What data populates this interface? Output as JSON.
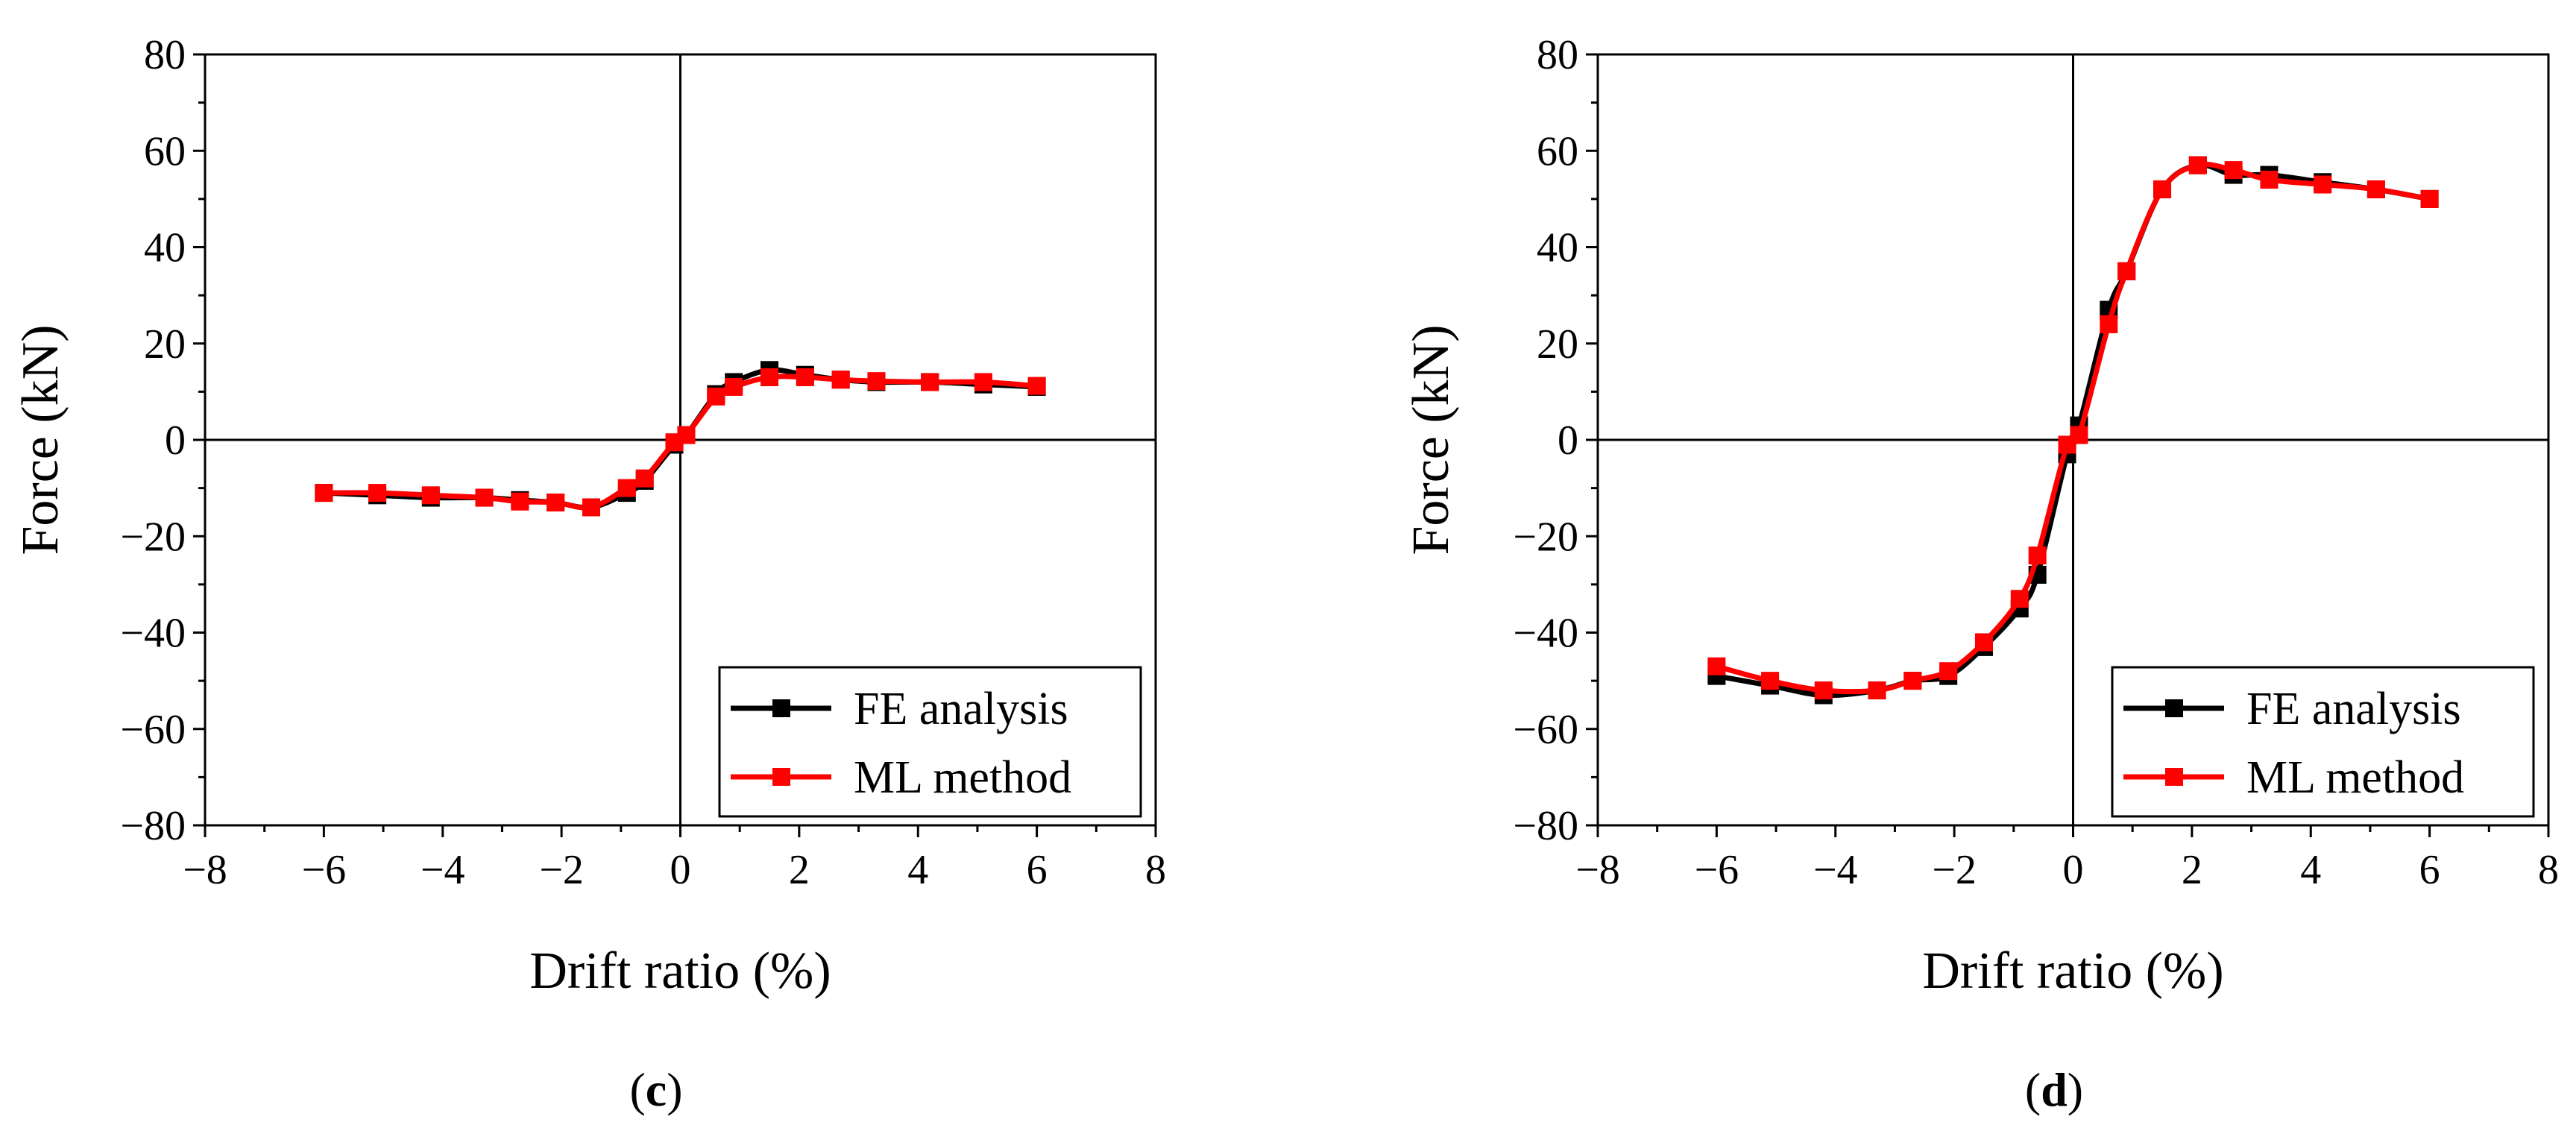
{
  "chart_data": [
    {
      "type": "line",
      "panel_label": "c",
      "xlabel": "Drift ratio (%)",
      "ylabel": "Force (kN)",
      "xlim": [
        -8,
        8
      ],
      "ylim": [
        -80,
        80
      ],
      "xticks": [
        -8,
        -6,
        -4,
        -2,
        0,
        2,
        4,
        6,
        8
      ],
      "yticks": [
        -80,
        -60,
        -40,
        -20,
        0,
        20,
        40,
        60,
        80
      ],
      "xtick_labels": [
        "−8",
        "−6",
        "−4",
        "−2",
        "0",
        "2",
        "4",
        "6",
        "8"
      ],
      "ytick_labels": [
        "−80",
        "−60",
        "−40",
        "−20",
        "0",
        "20",
        "40",
        "60",
        "80"
      ],
      "legend_position": "bottom-right",
      "series": [
        {
          "name": "FE analysis",
          "color": "#000000",
          "x": [
            -6.0,
            -5.1,
            -4.2,
            -3.3,
            -2.7,
            -2.1,
            -1.5,
            -0.9,
            -0.6,
            -0.1,
            0.1,
            0.6,
            0.9,
            1.5,
            2.1,
            2.7,
            3.3,
            4.2,
            5.1,
            6.0
          ],
          "y": [
            -11,
            -11.5,
            -12,
            -12,
            -12.5,
            -13,
            -14,
            -11,
            -8.5,
            -1,
            1,
            9.5,
            12,
            14.5,
            13.5,
            12.5,
            12,
            12,
            11.5,
            11
          ]
        },
        {
          "name": "ML method",
          "color": "#ff0000",
          "x": [
            -6.0,
            -5.1,
            -4.2,
            -3.3,
            -2.7,
            -2.1,
            -1.5,
            -0.9,
            -0.6,
            -0.1,
            0.1,
            0.6,
            0.9,
            1.5,
            2.1,
            2.7,
            3.3,
            4.2,
            5.1,
            6.0
          ],
          "y": [
            -11,
            -11,
            -11.5,
            -12,
            -12.8,
            -13,
            -14,
            -10,
            -8,
            -0.5,
            1,
            9,
            11,
            13,
            13,
            12.5,
            12.2,
            12,
            12,
            11.2
          ]
        }
      ]
    },
    {
      "type": "line",
      "panel_label": "d",
      "xlabel": "Drift ratio (%)",
      "ylabel": "Force (kN)",
      "xlim": [
        -8,
        8
      ],
      "ylim": [
        -80,
        80
      ],
      "xticks": [
        -8,
        -6,
        -4,
        -2,
        0,
        2,
        4,
        6,
        8
      ],
      "yticks": [
        -80,
        -60,
        -40,
        -20,
        0,
        20,
        40,
        60,
        80
      ],
      "xtick_labels": [
        "−8",
        "−6",
        "−4",
        "−2",
        "0",
        "2",
        "4",
        "6",
        "8"
      ],
      "ytick_labels": [
        "−80",
        "−60",
        "−40",
        "−20",
        "0",
        "20",
        "40",
        "60",
        "80"
      ],
      "legend_position": "bottom-right",
      "series": [
        {
          "name": "FE analysis",
          "color": "#000000",
          "x": [
            -6.0,
            -5.1,
            -4.2,
            -3.3,
            -2.7,
            -2.1,
            -1.5,
            -0.9,
            -0.6,
            -0.1,
            0.1,
            0.6,
            0.9,
            1.5,
            2.1,
            2.7,
            3.3,
            4.2,
            5.1,
            6.0
          ],
          "y": [
            -49,
            -51,
            -53,
            -52,
            -50,
            -49,
            -43,
            -35,
            -28,
            -3,
            3,
            27,
            35,
            52,
            57,
            55,
            55,
            53.5,
            52,
            50
          ]
        },
        {
          "name": "ML method",
          "color": "#ff0000",
          "x": [
            -6.0,
            -5.1,
            -4.2,
            -3.3,
            -2.7,
            -2.1,
            -1.5,
            -0.9,
            -0.6,
            -0.1,
            0.1,
            0.6,
            0.9,
            1.5,
            2.1,
            2.7,
            3.3,
            4.2,
            5.1,
            6.0
          ],
          "y": [
            -47,
            -50,
            -52,
            -52,
            -50,
            -48,
            -42,
            -33,
            -24,
            -1,
            1,
            24,
            35,
            52,
            57,
            56,
            54,
            53,
            52,
            50
          ]
        }
      ]
    }
  ]
}
